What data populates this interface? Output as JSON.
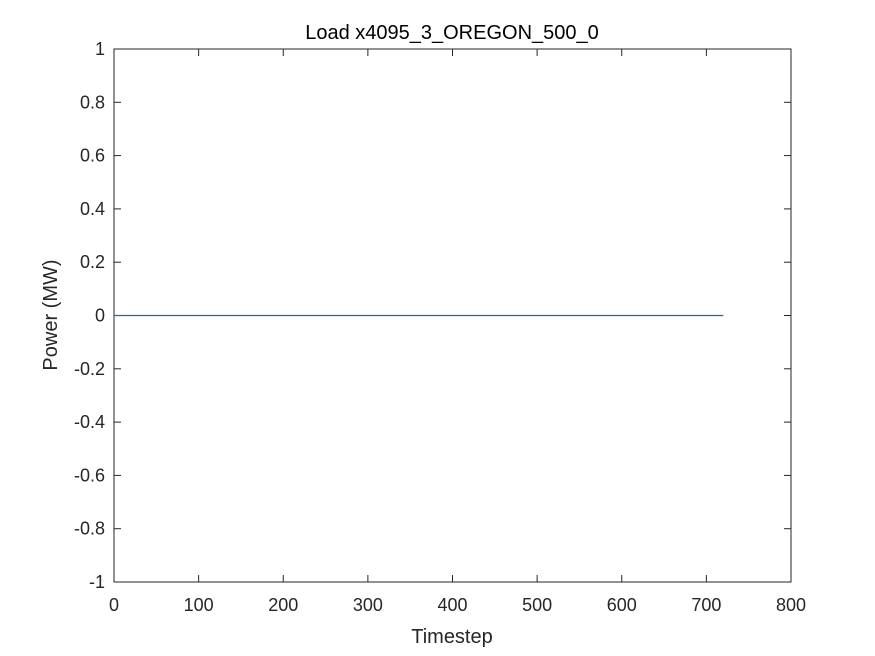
{
  "chart_data": {
    "type": "line",
    "title": "Load x4095_3_OREGON_500_0",
    "xlabel": "Timestep",
    "ylabel": "Power (MW)",
    "xlim": [
      0,
      800
    ],
    "ylim": [
      -1,
      1
    ],
    "xticks": [
      0,
      100,
      200,
      300,
      400,
      500,
      600,
      700,
      800
    ],
    "yticks": [
      -1,
      -0.8,
      -0.6,
      -0.4,
      -0.2,
      0,
      0.2,
      0.4,
      0.6,
      0.8,
      1
    ],
    "xtick_labels": [
      "0",
      "100",
      "200",
      "300",
      "400",
      "500",
      "600",
      "700",
      "800"
    ],
    "ytick_labels": [
      "-1",
      "-0.8",
      "-0.6",
      "-0.4",
      "-0.2",
      "0",
      "0.2",
      "0.4",
      "0.6",
      "0.8",
      "1"
    ],
    "grid": false,
    "series": [
      {
        "color": "#0072bd",
        "x": [
          0,
          720
        ],
        "y": [
          0,
          0
        ]
      }
    ]
  }
}
